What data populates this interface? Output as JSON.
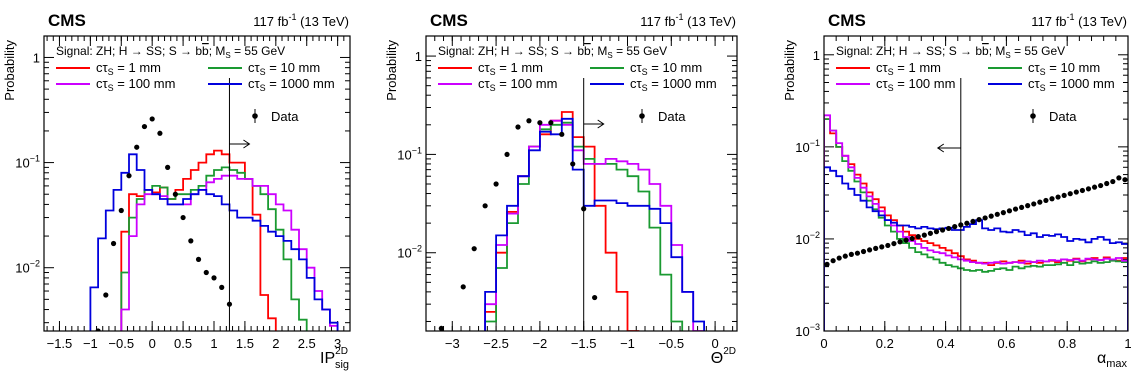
{
  "experiment": "CMS",
  "lumi_label": "117 fb",
  "lumi_sup": "-1",
  "energy_label": " (13 TeV)",
  "signal_label": "Signal: ZH; H → SS; S → b",
  "signal_label_bbar": "b",
  "signal_label_mass": "; M",
  "signal_label_mass_sub": "S",
  "signal_label_mass_val": " = 55 GeV",
  "legend_ct_prefix": "cτ",
  "legend_ct_sub": "S",
  "legend_data": "Data",
  "series_colors": {
    "1 mm": "#ff0000",
    "10 mm": "#1a9a31",
    "100 mm": "#cc00ff",
    "1000 mm": "#0000dd",
    "Data": "#000000"
  },
  "chart_data": [
    {
      "type": "line",
      "panel": "left",
      "ylabel": "Probability",
      "xlabel_main": "IP",
      "xlabel_sup": "2D",
      "xlabel_sub": "sig",
      "log_y": true,
      "xlim": [
        -1.75,
        3.2
      ],
      "ylim": [
        0.0025,
        1.6
      ],
      "x_ticks": [
        -1.5,
        -1,
        -0.5,
        0,
        0.5,
        1,
        1.5,
        2,
        2.5,
        3
      ],
      "x_tick_labels": [
        "−1.5",
        "−1",
        "−0.5",
        "0",
        "0.5",
        "1",
        "1.5",
        "2",
        "2.5",
        "3"
      ],
      "y_tick_labels": [
        {
          "v": 0.01,
          "base": "10",
          "exp": "−2"
        },
        {
          "v": 0.1,
          "base": "10",
          "exp": "−1"
        },
        {
          "v": 1,
          "base": "1",
          "exp": ""
        }
      ],
      "cut": 1.25,
      "arrow": "right",
      "bin_edges": [
        -1.0,
        -0.875,
        -0.75,
        -0.625,
        -0.5,
        -0.375,
        -0.25,
        -0.125,
        0.0,
        0.125,
        0.25,
        0.375,
        0.5,
        0.625,
        0.75,
        0.875,
        1.0,
        1.125,
        1.25,
        1.375,
        1.5,
        1.625,
        1.75,
        1.875,
        2.0,
        2.125,
        2.25,
        2.375,
        2.5,
        2.625,
        2.75,
        2.875,
        3.0
      ],
      "series": [
        {
          "name": "1 mm",
          "values": [
            0,
            0,
            0,
            0,
            0.022,
            0.05,
            0.048,
            0.055,
            0.052,
            0.058,
            0.045,
            0.055,
            0.07,
            0.085,
            0.1,
            0.12,
            0.13,
            0.12,
            0.1,
            0.1,
            0.07,
            0.032,
            0.0055,
            0.0033,
            0,
            0,
            0,
            0,
            0,
            0,
            0,
            0
          ]
        },
        {
          "name": "10 mm",
          "values": [
            0,
            0,
            0,
            0,
            0.009,
            0.03,
            0.045,
            0.055,
            0.06,
            0.058,
            0.045,
            0.05,
            0.05,
            0.055,
            0.06,
            0.075,
            0.085,
            0.09,
            0.085,
            0.08,
            0.07,
            0.06,
            0.05,
            0.036,
            0.023,
            0.012,
            0.005,
            0.0032,
            0,
            0,
            0,
            0
          ]
        },
        {
          "name": "100 mm",
          "values": [
            0,
            0,
            0,
            0,
            0.004,
            0.02,
            0.04,
            0.05,
            0.05,
            0.048,
            0.04,
            0.04,
            0.04,
            0.05,
            0.055,
            0.065,
            0.07,
            0.075,
            0.075,
            0.07,
            0.07,
            0.06,
            0.06,
            0.05,
            0.04,
            0.035,
            0.023,
            0.015,
            0.01,
            0.006,
            0.004,
            0.0028
          ]
        },
        {
          "name": "1000 mm",
          "values": [
            0.0065,
            0.019,
            0.035,
            0.055,
            0.08,
            0.12,
            0.085,
            0.055,
            0.05,
            0.045,
            0.04,
            0.04,
            0.045,
            0.05,
            0.055,
            0.05,
            0.048,
            0.04,
            0.035,
            0.03,
            0.03,
            0.028,
            0.025,
            0.022,
            0.02,
            0.018,
            0.015,
            0.012,
            0.008,
            0.005,
            0.004,
            0.003
          ]
        }
      ],
      "data_points": {
        "x": [
          -0.875,
          -0.75,
          -0.625,
          -0.5,
          -0.375,
          -0.25,
          -0.125,
          0.0,
          0.125,
          0.25,
          0.375,
          0.5,
          0.625,
          0.75,
          0.875,
          1.0,
          1.125,
          1.25
        ],
        "y": [
          0.0025,
          0.0055,
          0.017,
          0.035,
          0.075,
          0.14,
          0.22,
          0.26,
          0.19,
          0.09,
          0.05,
          0.03,
          0.018,
          0.012,
          0.009,
          0.008,
          0.0065,
          0.0045
        ]
      }
    },
    {
      "type": "line",
      "panel": "middle",
      "ylabel": "Probability",
      "xlabel_main": "Θ",
      "xlabel_sup": "2D",
      "xlabel_sub": "",
      "log_y": true,
      "xlim": [
        -3.3,
        0.25
      ],
      "ylim": [
        0.0016,
        1.6
      ],
      "x_ticks": [
        -3,
        -2.5,
        -2,
        -1.5,
        -1,
        -0.5,
        0
      ],
      "x_tick_labels": [
        "−3",
        "−2.5",
        "−2",
        "−1.5",
        "−1",
        "−0.5",
        "0"
      ],
      "y_tick_labels": [
        {
          "v": 0.01,
          "base": "10",
          "exp": "−2"
        },
        {
          "v": 0.1,
          "base": "10",
          "exp": "−1"
        },
        {
          "v": 1,
          "base": "1",
          "exp": ""
        }
      ],
      "cut": -1.5,
      "arrow": "right",
      "bin_edges": [
        -3.0,
        -2.875,
        -2.75,
        -2.625,
        -2.5,
        -2.375,
        -2.25,
        -2.125,
        -2.0,
        -1.875,
        -1.75,
        -1.625,
        -1.5,
        -1.375,
        -1.25,
        -1.125,
        -1.0,
        -0.875,
        -0.75,
        -0.625,
        -0.5,
        -0.375,
        -0.25,
        -0.125
      ],
      "series": [
        {
          "name": "1 mm",
          "values": [
            0,
            0,
            0,
            0.0025,
            0.01,
            0.026,
            0.06,
            0.12,
            0.16,
            0.22,
            0.27,
            0.15,
            0.12,
            0.03,
            0.01,
            0.004,
            0.0012,
            0,
            0,
            0,
            0,
            0,
            0,
            0
          ]
        },
        {
          "name": "10 mm",
          "values": [
            0,
            0,
            0,
            0.002,
            0.007,
            0.02,
            0.05,
            0.12,
            0.18,
            0.2,
            0.21,
            0.12,
            0.09,
            0.08,
            0.08,
            0.07,
            0.06,
            0.042,
            0.018,
            0.006,
            0.002,
            0,
            0,
            0
          ]
        },
        {
          "name": "100 mm",
          "values": [
            0,
            0,
            0,
            0.003,
            0.012,
            0.025,
            0.06,
            0.12,
            0.2,
            0.22,
            0.2,
            0.11,
            0.08,
            0.08,
            0.09,
            0.085,
            0.08,
            0.07,
            0.05,
            0.03,
            0.012,
            0.004,
            0.0016,
            0
          ]
        },
        {
          "name": "1000 mm",
          "values": [
            0,
            0,
            0,
            0.004,
            0.015,
            0.03,
            0.06,
            0.11,
            0.17,
            0.16,
            0.23,
            0.07,
            0.03,
            0.034,
            0.034,
            0.032,
            0.03,
            0.03,
            0.028,
            0.02,
            0.009,
            0.004,
            0.002,
            0
          ]
        }
      ],
      "data_points": {
        "x": [
          -3.125,
          -2.875,
          -2.75,
          -2.625,
          -2.5,
          -2.375,
          -2.25,
          -2.125,
          -2.0,
          -1.875,
          -1.75,
          -1.625,
          -1.5,
          -1.375
        ],
        "y": [
          0.0017,
          0.0045,
          0.011,
          0.03,
          0.05,
          0.1,
          0.19,
          0.22,
          0.21,
          0.21,
          0.16,
          0.08,
          0.028,
          0.0035
        ]
      }
    },
    {
      "type": "line",
      "panel": "right",
      "ylabel": "Probability",
      "xlabel_main": "α",
      "xlabel_sub": "max",
      "xlabel_sup": "",
      "log_y": true,
      "xlim": [
        0,
        1
      ],
      "ylim": [
        0.001,
        1.6
      ],
      "x_ticks": [
        0,
        0.2,
        0.4,
        0.6,
        0.8,
        1
      ],
      "x_tick_labels": [
        "0",
        "0.2",
        "0.4",
        "0.6",
        "0.8",
        "1"
      ],
      "y_tick_labels": [
        {
          "v": 0.001,
          "base": "10",
          "exp": "−3"
        },
        {
          "v": 0.01,
          "base": "10",
          "exp": "−2"
        },
        {
          "v": 0.1,
          "base": "10",
          "exp": "−1"
        },
        {
          "v": 1,
          "base": "1",
          "exp": ""
        }
      ],
      "cut": 0.45,
      "arrow": "left",
      "bin_count": 50,
      "series": [
        {
          "name": "1 mm",
          "values": [
            0.2,
            0.14,
            0.1,
            0.08,
            0.065,
            0.05,
            0.04,
            0.032,
            0.027,
            0.022,
            0.018,
            0.016,
            0.014,
            0.012,
            0.011,
            0.01,
            0.0095,
            0.009,
            0.0085,
            0.008,
            0.0075,
            0.007,
            0.0065,
            0.006,
            0.0058,
            0.0055,
            0.0055,
            0.0052,
            0.0055,
            0.0057,
            0.0055,
            0.0056,
            0.0058,
            0.0054,
            0.0056,
            0.0055,
            0.0057,
            0.0058,
            0.0056,
            0.006,
            0.0058,
            0.0061,
            0.0057,
            0.006,
            0.0062,
            0.0059,
            0.0063,
            0.006,
            0.0058,
            0.0062
          ]
        },
        {
          "name": "10 mm",
          "values": [
            0.2,
            0.15,
            0.1,
            0.07,
            0.055,
            0.042,
            0.032,
            0.026,
            0.021,
            0.017,
            0.014,
            0.012,
            0.01,
            0.009,
            0.008,
            0.0072,
            0.0068,
            0.0063,
            0.006,
            0.0055,
            0.0052,
            0.005,
            0.0048,
            0.0046,
            0.0045,
            0.0046,
            0.0044,
            0.0045,
            0.0047,
            0.0048,
            0.0046,
            0.005,
            0.0048,
            0.005,
            0.0051,
            0.005,
            0.0052,
            0.0052,
            0.0053,
            0.0055,
            0.0052,
            0.0056,
            0.0054,
            0.0055,
            0.0057,
            0.0055,
            0.0056,
            0.0058,
            0.0057,
            0.0056
          ]
        },
        {
          "name": "100 mm",
          "values": [
            0.22,
            0.15,
            0.11,
            0.08,
            0.06,
            0.046,
            0.036,
            0.029,
            0.024,
            0.02,
            0.016,
            0.014,
            0.012,
            0.0105,
            0.0095,
            0.0088,
            0.008,
            0.0075,
            0.0072,
            0.007,
            0.0066,
            0.0063,
            0.006,
            0.0058,
            0.0056,
            0.0055,
            0.0054,
            0.0055,
            0.0056,
            0.0054,
            0.0055,
            0.0056,
            0.0055,
            0.0057,
            0.0056,
            0.0058,
            0.0057,
            0.0059,
            0.0058,
            0.006,
            0.0059,
            0.006,
            0.0058,
            0.0061,
            0.006,
            0.0059,
            0.0061,
            0.006,
            0.0062,
            0.0058
          ]
        },
        {
          "name": "1000 mm",
          "values": [
            0.06,
            0.055,
            0.048,
            0.04,
            0.035,
            0.03,
            0.026,
            0.022,
            0.02,
            0.018,
            0.016,
            0.015,
            0.014,
            0.014,
            0.0135,
            0.013,
            0.0135,
            0.013,
            0.0128,
            0.013,
            0.0132,
            0.0125,
            0.0125,
            0.0135,
            0.0145,
            0.016,
            0.013,
            0.0125,
            0.013,
            0.012,
            0.0118,
            0.0125,
            0.012,
            0.011,
            0.0115,
            0.0105,
            0.011,
            0.0108,
            0.0112,
            0.0105,
            0.0095,
            0.01,
            0.0098,
            0.0092,
            0.01,
            0.0105,
            0.0098,
            0.009,
            0.0092,
            0.0088
          ]
        }
      ],
      "data_points": {
        "x": [
          0.01,
          0.03,
          0.05,
          0.07,
          0.09,
          0.11,
          0.13,
          0.15,
          0.17,
          0.19,
          0.21,
          0.23,
          0.25,
          0.27,
          0.29,
          0.31,
          0.33,
          0.35,
          0.37,
          0.39,
          0.41,
          0.43,
          0.45,
          0.47,
          0.49,
          0.51,
          0.53,
          0.55,
          0.57,
          0.59,
          0.61,
          0.63,
          0.65,
          0.67,
          0.69,
          0.71,
          0.73,
          0.75,
          0.77,
          0.79,
          0.81,
          0.83,
          0.85,
          0.87,
          0.89,
          0.91,
          0.93,
          0.95,
          0.97,
          0.99
        ],
        "y": [
          0.0053,
          0.0058,
          0.0062,
          0.0065,
          0.0068,
          0.007,
          0.0073,
          0.0076,
          0.0079,
          0.0082,
          0.0085,
          0.0089,
          0.0093,
          0.0097,
          0.0101,
          0.0106,
          0.011,
          0.0115,
          0.012,
          0.0125,
          0.013,
          0.0136,
          0.0142,
          0.0148,
          0.0155,
          0.0162,
          0.0169,
          0.0177,
          0.0185,
          0.0193,
          0.0202,
          0.0211,
          0.022,
          0.023,
          0.024,
          0.0251,
          0.0262,
          0.0273,
          0.0285,
          0.0297,
          0.031,
          0.0323,
          0.0336,
          0.035,
          0.0365,
          0.038,
          0.04,
          0.042,
          0.046,
          0.044
        ]
      }
    }
  ]
}
